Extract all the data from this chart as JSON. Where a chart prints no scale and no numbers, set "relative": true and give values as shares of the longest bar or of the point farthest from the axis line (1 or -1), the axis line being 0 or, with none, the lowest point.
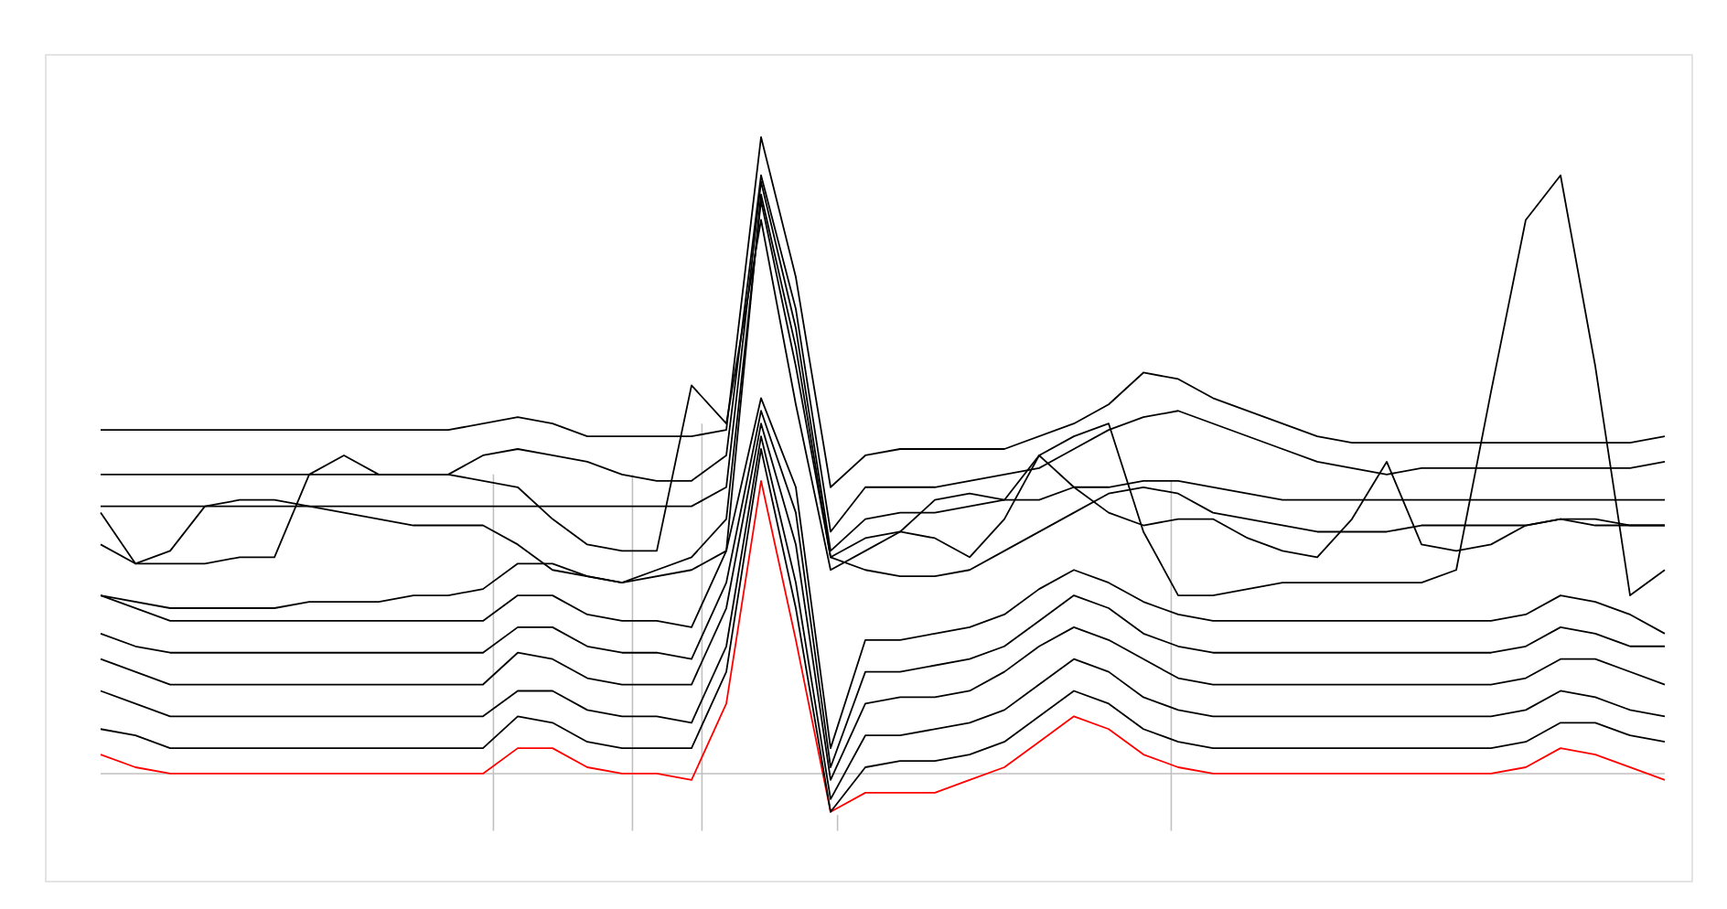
{
  "chart_data": {
    "type": "line",
    "relative": true,
    "categories": [
      null,
      null,
      null,
      null,
      null,
      null,
      null,
      null,
      null,
      null,
      null,
      null,
      null,
      null,
      null,
      null,
      null,
      null,
      null,
      null,
      null,
      null,
      null,
      null,
      null,
      null,
      null,
      null,
      null,
      null,
      null,
      null,
      null,
      null,
      null,
      null,
      null,
      null,
      null,
      null,
      null,
      null,
      null,
      null,
      null,
      null
    ],
    "series": [
      {
        "color": "#ff0000",
        "values": [
          0.03,
          0.01,
          0,
          0,
          0,
          0,
          0,
          0,
          0,
          0,
          0,
          0,
          0.04,
          0.04,
          0.01,
          0,
          0,
          -0.01,
          0.11,
          0.46,
          0.21,
          -0.06,
          -0.03,
          -0.03,
          -0.03,
          -0.01,
          0.01,
          0.05,
          0.09,
          0.07,
          0.03,
          0.01,
          0,
          0,
          0,
          0,
          0,
          0,
          0,
          0,
          0,
          0.01,
          0.04,
          0.03,
          0.01,
          -0.01
        ]
      },
      {
        "color": "#000000",
        "values": [
          0.07,
          0.06,
          0.04,
          0.04,
          0.04,
          0.04,
          0.04,
          0.04,
          0.04,
          0.04,
          0.04,
          0.04,
          0.09,
          0.08,
          0.05,
          0.04,
          0.04,
          0.04,
          0.16,
          0.51,
          0.26,
          -0.06,
          0.01,
          0.02,
          0.02,
          0.03,
          0.05,
          0.09,
          0.13,
          0.11,
          0.07,
          0.05,
          0.04,
          0.04,
          0.04,
          0.04,
          0.04,
          0.04,
          0.04,
          0.04,
          0.04,
          0.05,
          0.08,
          0.08,
          0.06,
          0.05
        ]
      },
      {
        "color": "#000000",
        "values": [
          0.13,
          0.11,
          0.09,
          0.09,
          0.09,
          0.09,
          0.09,
          0.09,
          0.09,
          0.09,
          0.09,
          0.09,
          0.13,
          0.13,
          0.1,
          0.09,
          0.09,
          0.08,
          0.2,
          0.53,
          0.3,
          -0.04,
          0.06,
          0.06,
          0.07,
          0.08,
          0.1,
          0.14,
          0.18,
          0.16,
          0.12,
          0.1,
          0.09,
          0.09,
          0.09,
          0.09,
          0.09,
          0.09,
          0.09,
          0.09,
          0.09,
          0.1,
          0.13,
          0.12,
          0.1,
          0.09
        ]
      },
      {
        "color": "#000000",
        "values": [
          0.18,
          0.16,
          0.14,
          0.14,
          0.14,
          0.14,
          0.14,
          0.14,
          0.14,
          0.14,
          0.14,
          0.14,
          0.19,
          0.18,
          0.15,
          0.14,
          0.14,
          0.14,
          0.26,
          0.55,
          0.36,
          -0.01,
          0.11,
          0.12,
          0.12,
          0.13,
          0.16,
          0.2,
          0.23,
          0.21,
          0.18,
          0.15,
          0.14,
          0.14,
          0.14,
          0.14,
          0.14,
          0.14,
          0.14,
          0.14,
          0.14,
          0.15,
          0.18,
          0.18,
          0.16,
          0.14
        ]
      },
      {
        "color": "#000000",
        "values": [
          0.22,
          0.2,
          0.19,
          0.19,
          0.19,
          0.19,
          0.19,
          0.19,
          0.19,
          0.19,
          0.19,
          0.19,
          0.23,
          0.23,
          0.2,
          0.19,
          0.19,
          0.18,
          0.3,
          0.57,
          0.41,
          0.01,
          0.16,
          0.16,
          0.17,
          0.18,
          0.2,
          0.24,
          0.28,
          0.26,
          0.22,
          0.2,
          0.19,
          0.19,
          0.19,
          0.19,
          0.19,
          0.19,
          0.19,
          0.19,
          0.19,
          0.2,
          0.23,
          0.22,
          0.2,
          0.2
        ]
      },
      {
        "color": "#000000",
        "values": [
          0.28,
          0.26,
          0.24,
          0.24,
          0.24,
          0.24,
          0.24,
          0.24,
          0.24,
          0.24,
          0.24,
          0.24,
          0.28,
          0.28,
          0.25,
          0.24,
          0.24,
          0.23,
          0.35,
          0.59,
          0.45,
          0.04,
          0.21,
          0.21,
          0.22,
          0.23,
          0.25,
          0.29,
          0.32,
          0.3,
          0.27,
          0.25,
          0.24,
          0.24,
          0.24,
          0.24,
          0.24,
          0.24,
          0.24,
          0.24,
          0.24,
          0.25,
          0.28,
          0.27,
          0.25,
          0.22
        ]
      },
      {
        "color": "#000000",
        "values": [
          0.28,
          0.27,
          0.26,
          0.26,
          0.26,
          0.26,
          0.27,
          0.27,
          0.27,
          0.28,
          0.28,
          0.29,
          0.33,
          0.33,
          0.31,
          0.3,
          0.31,
          0.32,
          0.35,
          0.91,
          0.67,
          0.34,
          0.32,
          0.31,
          0.31,
          0.32,
          0.35,
          0.38,
          0.41,
          0.44,
          0.45,
          0.44,
          0.41,
          0.4,
          0.39,
          0.38,
          0.38,
          0.38,
          0.39,
          0.39,
          0.39,
          0.39,
          0.4,
          0.4,
          0.39,
          0.39
        ]
      },
      {
        "color": "#000000",
        "values": [
          0.41,
          0.33,
          0.35,
          0.42,
          0.43,
          0.43,
          0.42,
          0.41,
          0.4,
          0.39,
          0.39,
          0.39,
          0.36,
          0.32,
          0.31,
          0.3,
          0.32,
          0.34,
          0.4,
          0.9,
          0.64,
          0.34,
          0.37,
          0.38,
          0.37,
          0.34,
          0.4,
          0.5,
          0.45,
          0.41,
          0.39,
          0.4,
          0.4,
          0.37,
          0.35,
          0.34,
          0.4,
          0.49,
          0.36,
          0.35,
          0.36,
          0.39,
          0.4,
          0.39,
          0.39,
          0.39
        ]
      },
      {
        "color": "#000000",
        "values": [
          0.36,
          0.33,
          0.33,
          0.33,
          0.34,
          0.34,
          0.47,
          0.5,
          0.47,
          0.47,
          0.47,
          0.46,
          0.45,
          0.4,
          0.36,
          0.35,
          0.35,
          0.61,
          0.55,
          0.87,
          0.58,
          0.32,
          0.35,
          0.38,
          0.43,
          0.44,
          0.43,
          0.5,
          0.53,
          0.55,
          0.38,
          0.28,
          0.28,
          0.29,
          0.3,
          0.3,
          0.3,
          0.3,
          0.3,
          0.32,
          0.6,
          0.87,
          0.94,
          0.64,
          0.28,
          0.32
        ]
      },
      {
        "color": "#000000",
        "values": [
          0.42,
          0.42,
          0.42,
          0.42,
          0.42,
          0.42,
          0.42,
          0.42,
          0.42,
          0.42,
          0.42,
          0.42,
          0.42,
          0.42,
          0.42,
          0.42,
          0.42,
          0.42,
          0.45,
          0.93,
          0.7,
          0.35,
          0.4,
          0.41,
          0.41,
          0.42,
          0.43,
          0.43,
          0.45,
          0.45,
          0.46,
          0.46,
          0.45,
          0.44,
          0.43,
          0.43,
          0.43,
          0.43,
          0.43,
          0.43,
          0.43,
          0.43,
          0.43,
          0.43,
          0.43,
          0.43
        ]
      },
      {
        "color": "#000000",
        "values": [
          0.47,
          0.47,
          0.47,
          0.47,
          0.47,
          0.47,
          0.47,
          0.47,
          0.47,
          0.47,
          0.47,
          0.5,
          0.51,
          0.5,
          0.49,
          0.47,
          0.46,
          0.46,
          0.5,
          0.94,
          0.73,
          0.38,
          0.45,
          0.45,
          0.45,
          0.46,
          0.47,
          0.48,
          0.51,
          0.54,
          0.56,
          0.57,
          0.55,
          0.53,
          0.51,
          0.49,
          0.48,
          0.47,
          0.48,
          0.48,
          0.48,
          0.48,
          0.48,
          0.48,
          0.48,
          0.49
        ]
      },
      {
        "color": "#000000",
        "values": [
          0.54,
          0.54,
          0.54,
          0.54,
          0.54,
          0.54,
          0.54,
          0.54,
          0.54,
          0.54,
          0.54,
          0.55,
          0.56,
          0.55,
          0.53,
          0.53,
          0.53,
          0.53,
          0.54,
          1,
          0.78,
          0.45,
          0.5,
          0.51,
          0.51,
          0.51,
          0.51,
          0.53,
          0.55,
          0.58,
          0.63,
          0.62,
          0.59,
          0.57,
          0.55,
          0.53,
          0.52,
          0.52,
          0.52,
          0.52,
          0.52,
          0.52,
          0.52,
          0.52,
          0.52,
          0.53
        ]
      }
    ]
  }
}
